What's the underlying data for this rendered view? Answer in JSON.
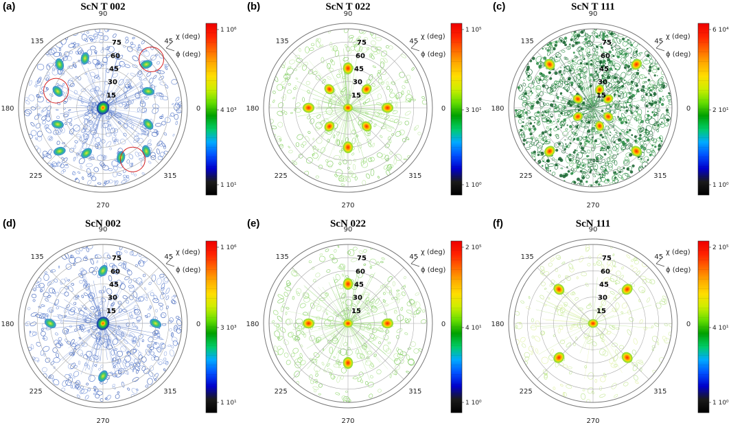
{
  "chart_data": [
    {
      "type": "polar-contour",
      "panel": "(a)",
      "title": "ScN T 002",
      "phi_ticks": [
        "0",
        "45",
        "90",
        "135",
        "180",
        "225",
        "270",
        "315"
      ],
      "chi_ticks": [
        "15",
        "30",
        "45",
        "60",
        "75"
      ],
      "axis_labels": [
        "χ (deg)",
        "ϕ (deg)"
      ],
      "colorbar_labels": [
        "1 10⁶",
        "4 10³",
        "1 10¹"
      ],
      "palette": "blue",
      "peaks": [
        {
          "phi": 0,
          "chi": 0,
          "intensity": 1.0
        },
        {
          "phi": 45,
          "chi": 70,
          "intensity": 0.55
        },
        {
          "phi": 135,
          "chi": 70,
          "intensity": 0.55
        },
        {
          "phi": 225,
          "chi": 70,
          "intensity": 0.55
        },
        {
          "phi": 315,
          "chi": 70,
          "intensity": 0.55
        },
        {
          "phi": 160,
          "chi": 55,
          "intensity": 0.6
        },
        {
          "phi": 20,
          "chi": 55,
          "intensity": 0.6
        },
        {
          "phi": 200,
          "chi": 55,
          "intensity": 0.6
        },
        {
          "phi": 340,
          "chi": 55,
          "intensity": 0.6
        },
        {
          "phi": 110,
          "chi": 60,
          "intensity": 0.45
        },
        {
          "phi": 250,
          "chi": 55,
          "intensity": 0.6
        },
        {
          "phi": 290,
          "chi": 60,
          "intensity": 0.45
        }
      ],
      "annotations": [
        {
          "type": "circle",
          "phi": 45,
          "chi": 78
        },
        {
          "type": "circle",
          "phi": 160,
          "chi": 57
        },
        {
          "type": "circle",
          "phi": 300,
          "chi": 68
        }
      ]
    },
    {
      "type": "polar-contour",
      "panel": "(b)",
      "title": "ScN T 022",
      "phi_ticks": [
        "0",
        "45",
        "90",
        "135",
        "180",
        "225",
        "270",
        "315"
      ],
      "chi_ticks": [
        "15",
        "30",
        "45",
        "60",
        "75"
      ],
      "axis_labels": [
        "χ (deg)",
        "ϕ (deg)"
      ],
      "colorbar_labels": [
        "1 10⁵",
        "3 10¹",
        "1 10⁰"
      ],
      "palette": "green",
      "peaks": [
        {
          "phi": 90,
          "chi": 45,
          "intensity": 0.9
        },
        {
          "phi": 180,
          "chi": 45,
          "intensity": 0.9
        },
        {
          "phi": 270,
          "chi": 45,
          "intensity": 0.9
        },
        {
          "phi": 0,
          "chi": 45,
          "intensity": 0.9
        },
        {
          "phi": 45,
          "chi": 30,
          "intensity": 0.75
        },
        {
          "phi": 135,
          "chi": 30,
          "intensity": 0.75
        },
        {
          "phi": 225,
          "chi": 30,
          "intensity": 0.75
        },
        {
          "phi": 315,
          "chi": 30,
          "intensity": 0.75
        },
        {
          "phi": 0,
          "chi": 0,
          "intensity": 0.5
        }
      ]
    },
    {
      "type": "polar-contour",
      "panel": "(c)",
      "title": "ScN T 111",
      "phi_ticks": [
        "0",
        "45",
        "90",
        "135",
        "180",
        "225",
        "270",
        "315"
      ],
      "chi_ticks": [
        "15",
        "30",
        "45",
        "60",
        "75"
      ],
      "axis_labels": [
        "χ (deg)",
        "ϕ (deg)"
      ],
      "colorbar_labels": [
        "6 10⁴",
        "2 10¹",
        "1 10⁰"
      ],
      "palette": "dense",
      "peaks": [
        {
          "phi": 45,
          "chi": 70,
          "intensity": 0.85
        },
        {
          "phi": 135,
          "chi": 70,
          "intensity": 0.85
        },
        {
          "phi": 225,
          "chi": 70,
          "intensity": 0.85
        },
        {
          "phi": 315,
          "chi": 70,
          "intensity": 0.85
        },
        {
          "phi": 30,
          "chi": 20,
          "intensity": 0.6
        },
        {
          "phi": 150,
          "chi": 20,
          "intensity": 0.6
        },
        {
          "phi": 210,
          "chi": 20,
          "intensity": 0.6
        },
        {
          "phi": 330,
          "chi": 20,
          "intensity": 0.6
        },
        {
          "phi": 70,
          "chi": 22,
          "intensity": 0.6
        },
        {
          "phi": 290,
          "chi": 22,
          "intensity": 0.6
        }
      ]
    },
    {
      "type": "polar-contour",
      "panel": "(d)",
      "title": "ScN 002",
      "phi_ticks": [
        "0",
        "45",
        "90",
        "135",
        "180",
        "225",
        "270",
        "315"
      ],
      "chi_ticks": [
        "15",
        "30",
        "45",
        "60",
        "75"
      ],
      "axis_labels": [
        "χ (deg)",
        "ϕ (deg)"
      ],
      "colorbar_labels": [
        "1 10⁶",
        "3 10³",
        "1 10¹"
      ],
      "palette": "blue",
      "peaks": [
        {
          "phi": 0,
          "chi": 0,
          "intensity": 1.0
        },
        {
          "phi": 0,
          "chi": 60,
          "intensity": 0.35
        },
        {
          "phi": 90,
          "chi": 60,
          "intensity": 0.35
        },
        {
          "phi": 180,
          "chi": 60,
          "intensity": 0.35
        },
        {
          "phi": 270,
          "chi": 60,
          "intensity": 0.35
        }
      ]
    },
    {
      "type": "polar-contour",
      "panel": "(e)",
      "title": "ScN 022",
      "phi_ticks": [
        "0",
        "45",
        "90",
        "135",
        "180",
        "225",
        "270",
        "315"
      ],
      "chi_ticks": [
        "15",
        "30",
        "45",
        "60",
        "75"
      ],
      "axis_labels": [
        "χ (deg)",
        "ϕ (deg)"
      ],
      "colorbar_labels": [
        "2 10⁵",
        "4 10¹",
        "1 10⁰"
      ],
      "palette": "green",
      "peaks": [
        {
          "phi": 90,
          "chi": 45,
          "intensity": 0.9
        },
        {
          "phi": 180,
          "chi": 45,
          "intensity": 0.9
        },
        {
          "phi": 270,
          "chi": 45,
          "intensity": 0.9
        },
        {
          "phi": 0,
          "chi": 45,
          "intensity": 0.9
        },
        {
          "phi": 0,
          "chi": 0,
          "intensity": 0.5
        }
      ]
    },
    {
      "type": "polar-contour",
      "panel": "(f)",
      "title": "ScN 111",
      "phi_ticks": [
        "0",
        "45",
        "90",
        "135",
        "180",
        "225",
        "270",
        "315"
      ],
      "chi_ticks": [
        "15",
        "30",
        "45",
        "60",
        "75"
      ],
      "axis_labels": [
        "χ (deg)",
        "ϕ (deg)"
      ],
      "colorbar_labels": [
        "2 10⁵",
        "4 10¹",
        "1 10⁰"
      ],
      "palette": "light",
      "peaks": [
        {
          "phi": 45,
          "chi": 55,
          "intensity": 0.9
        },
        {
          "phi": 135,
          "chi": 55,
          "intensity": 0.9
        },
        {
          "phi": 225,
          "chi": 55,
          "intensity": 0.9
        },
        {
          "phi": 315,
          "chi": 55,
          "intensity": 0.9
        },
        {
          "phi": 0,
          "chi": 0,
          "intensity": 0.6
        }
      ]
    }
  ],
  "colors": {
    "colorbar_stops": [
      "#000000",
      "#1a1a1a",
      "#0000cc",
      "#0050ff",
      "#00aaff",
      "#00cc66",
      "#00a000",
      "#66dd00",
      "#ccee00",
      "#ffdd00",
      "#ffaa00",
      "#ff6600",
      "#ff2200",
      "#ee0000"
    ],
    "ring": "#777777",
    "grid": "#aaaaaa",
    "annotation": "#d62020"
  }
}
